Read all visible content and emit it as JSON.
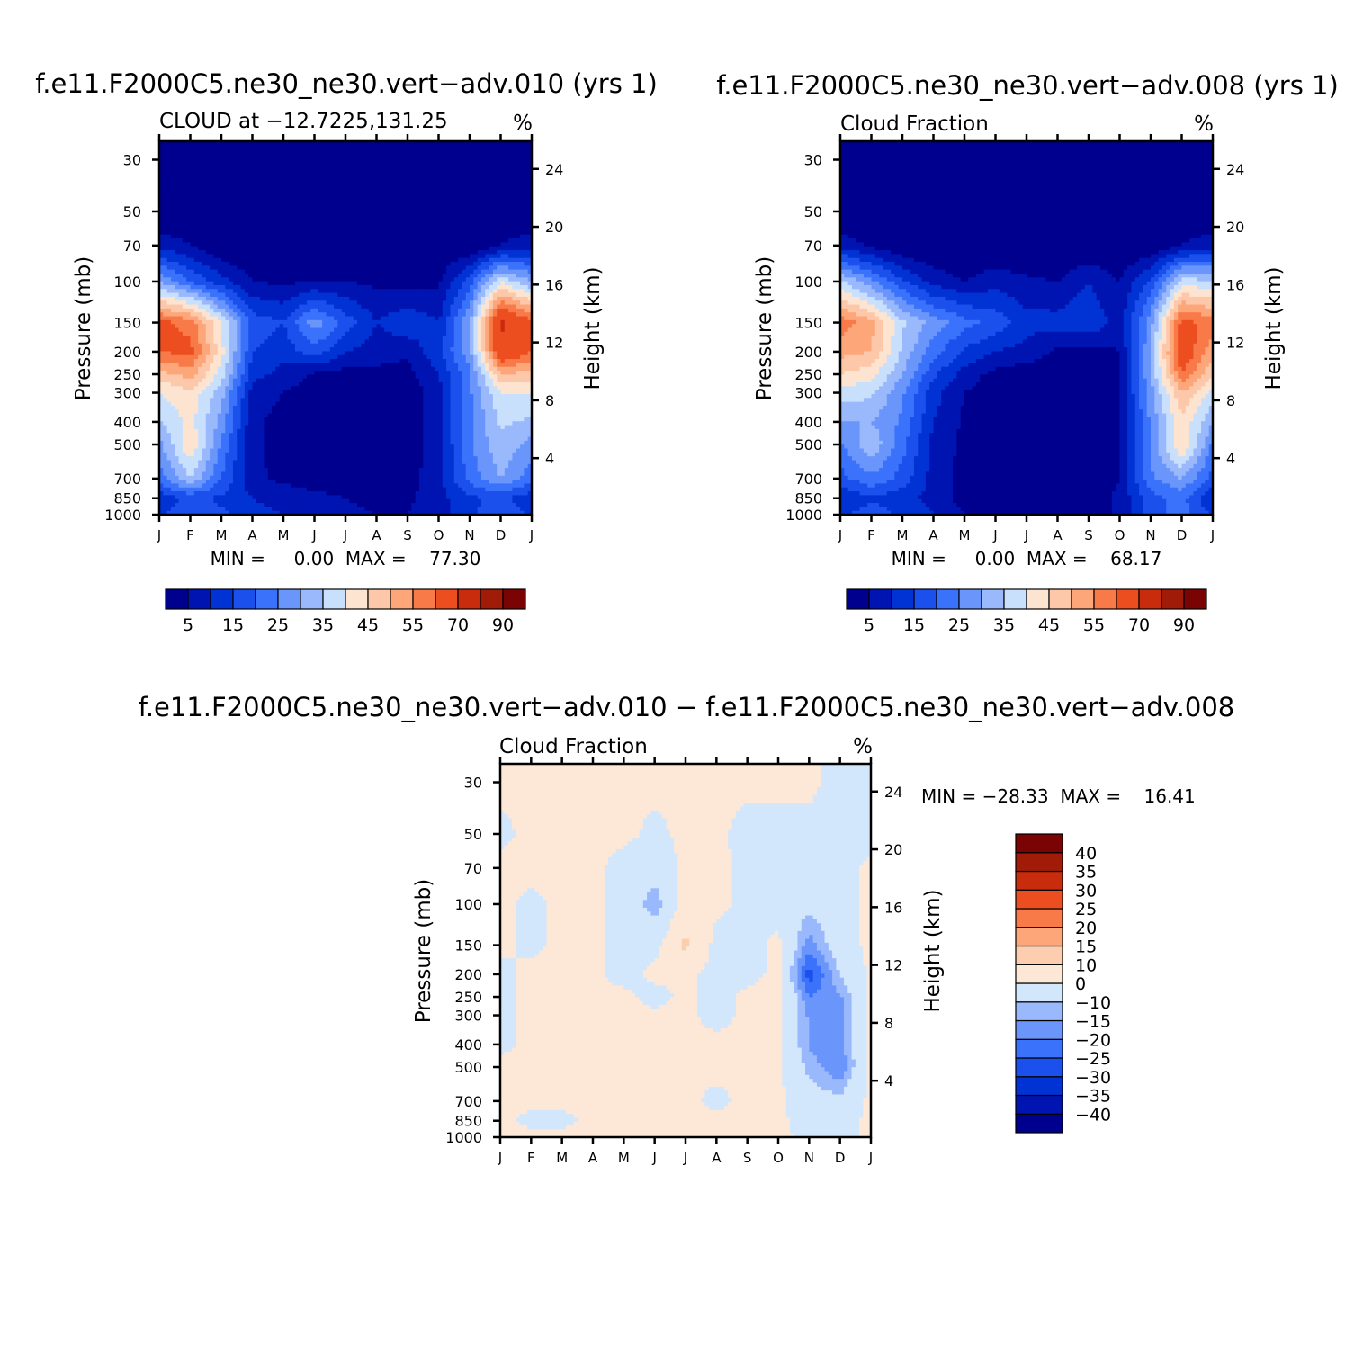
{
  "chart_data": [
    {
      "type": "heatmap",
      "run_title": "f.e11.F2000C5.ne30_ne30.vert−adv.010 (yrs 1)",
      "left_title": "CLOUD at −12.7225,131.25",
      "units": "%",
      "ylabel": "Pressure (mb)",
      "ylabel_right": "Height (km)",
      "x_ticks": [
        "J",
        "F",
        "M",
        "A",
        "M",
        "J",
        "J",
        "A",
        "S",
        "O",
        "N",
        "D",
        "J"
      ],
      "y_ticks": [
        "30",
        "50",
        "70",
        "100",
        "150",
        "200",
        "250",
        "300",
        "400",
        "500",
        "700",
        "850",
        "1000"
      ],
      "y_ticks_right": [
        "24",
        "20",
        "16",
        "12",
        "8",
        "4"
      ],
      "min": "0.00",
      "max": "77.30",
      "minmax_text": "MIN =     0.00  MAX =    77.30",
      "levels": [
        5,
        10,
        15,
        20,
        25,
        30,
        35,
        40,
        45,
        50,
        55,
        60,
        70,
        80,
        90
      ],
      "colorbar_labels": [
        "5",
        "15",
        "25",
        "35",
        "45",
        "55",
        "70",
        "90"
      ],
      "grid": [
        [
          0,
          0,
          0,
          0,
          0,
          0,
          0,
          0,
          0,
          0,
          0,
          0,
          0
        ],
        [
          0,
          0,
          0,
          0,
          0,
          0,
          0,
          0,
          0,
          0,
          0,
          0,
          0
        ],
        [
          8,
          5,
          0,
          0,
          0,
          0,
          0,
          0,
          0,
          0,
          0,
          5,
          8
        ],
        [
          30,
          20,
          12,
          5,
          4,
          5,
          5,
          4,
          3,
          4,
          18,
          40,
          30
        ],
        [
          62,
          58,
          40,
          18,
          15,
          28,
          18,
          10,
          14,
          10,
          30,
          72,
          62
        ],
        [
          60,
          62,
          42,
          15,
          12,
          18,
          10,
          8,
          6,
          14,
          28,
          68,
          60
        ],
        [
          48,
          52,
          38,
          12,
          8,
          4,
          3,
          3,
          3,
          10,
          24,
          50,
          48
        ],
        [
          40,
          44,
          32,
          8,
          5,
          3,
          2,
          2,
          2,
          8,
          24,
          40,
          40
        ],
        [
          34,
          42,
          28,
          6,
          3,
          2,
          2,
          2,
          2,
          8,
          24,
          36,
          34
        ],
        [
          28,
          45,
          24,
          6,
          3,
          2,
          2,
          2,
          2,
          8,
          24,
          34,
          28
        ],
        [
          22,
          35,
          20,
          6,
          4,
          3,
          3,
          3,
          3,
          8,
          22,
          30,
          22
        ],
        [
          12,
          16,
          14,
          10,
          8,
          6,
          5,
          4,
          4,
          8,
          14,
          16,
          12
        ],
        [
          14,
          20,
          16,
          12,
          10,
          8,
          6,
          5,
          5,
          8,
          14,
          18,
          14
        ]
      ]
    },
    {
      "type": "heatmap",
      "run_title": "f.e11.F2000C5.ne30_ne30.vert−adv.008 (yrs 1)",
      "left_title": "Cloud Fraction",
      "units": "%",
      "ylabel": "Pressure (mb)",
      "ylabel_right": "Height (km)",
      "x_ticks": [
        "J",
        "F",
        "M",
        "A",
        "M",
        "J",
        "J",
        "A",
        "S",
        "O",
        "N",
        "D",
        "J"
      ],
      "y_ticks": [
        "30",
        "50",
        "70",
        "100",
        "150",
        "200",
        "250",
        "300",
        "400",
        "500",
        "700",
        "850",
        "1000"
      ],
      "y_ticks_right": [
        "24",
        "20",
        "16",
        "12",
        "8",
        "4"
      ],
      "min": "0.00",
      "max": "68.17",
      "minmax_text": "MIN =     0.00  MAX =    68.17",
      "levels": [
        5,
        10,
        15,
        20,
        25,
        30,
        35,
        40,
        45,
        50,
        55,
        60,
        70,
        80,
        90
      ],
      "colorbar_labels": [
        "5",
        "15",
        "25",
        "35",
        "45",
        "55",
        "70",
        "90"
      ],
      "grid": [
        [
          0,
          0,
          0,
          0,
          0,
          0,
          0,
          0,
          0,
          0,
          0,
          0,
          0
        ],
        [
          0,
          0,
          0,
          0,
          0,
          0,
          0,
          0,
          0,
          0,
          0,
          0,
          0
        ],
        [
          8,
          4,
          0,
          0,
          0,
          0,
          0,
          0,
          0,
          0,
          0,
          5,
          8
        ],
        [
          36,
          26,
          16,
          8,
          5,
          8,
          6,
          5,
          10,
          5,
          16,
          38,
          36
        ],
        [
          58,
          52,
          36,
          28,
          22,
          18,
          12,
          12,
          14,
          8,
          28,
          62,
          58
        ],
        [
          52,
          50,
          34,
          22,
          14,
          10,
          8,
          4,
          3,
          5,
          30,
          66,
          52
        ],
        [
          45,
          42,
          30,
          16,
          8,
          3,
          2,
          2,
          2,
          5,
          30,
          60,
          45
        ],
        [
          38,
          36,
          26,
          12,
          5,
          2,
          2,
          2,
          2,
          5,
          28,
          50,
          38
        ],
        [
          30,
          30,
          24,
          10,
          4,
          2,
          2,
          2,
          2,
          5,
          26,
          44,
          30
        ],
        [
          24,
          34,
          22,
          8,
          4,
          2,
          2,
          2,
          2,
          5,
          26,
          46,
          24
        ],
        [
          18,
          24,
          18,
          8,
          3,
          2,
          2,
          2,
          2,
          5,
          24,
          30,
          18
        ],
        [
          10,
          14,
          12,
          8,
          3,
          2,
          2,
          2,
          2,
          6,
          18,
          22,
          10
        ],
        [
          14,
          18,
          14,
          10,
          5,
          2,
          2,
          2,
          2,
          6,
          18,
          22,
          14
        ]
      ]
    },
    {
      "type": "heatmap",
      "run_title": "f.e11.F2000C5.ne30_ne30.vert−adv.010 − f.e11.F2000C5.ne30_ne30.vert−adv.008",
      "left_title": "Cloud Fraction",
      "units": "%",
      "ylabel": "Pressure (mb)",
      "ylabel_right": "Height (km)",
      "x_ticks": [
        "J",
        "F",
        "M",
        "A",
        "M",
        "J",
        "J",
        "A",
        "S",
        "O",
        "N",
        "D",
        "J"
      ],
      "y_ticks": [
        "30",
        "50",
        "70",
        "100",
        "150",
        "200",
        "250",
        "300",
        "400",
        "500",
        "700",
        "850",
        "1000"
      ],
      "y_ticks_right": [
        "24",
        "20",
        "16",
        "12",
        "8",
        "4"
      ],
      "min": "−28.33",
      "max": "16.41",
      "minmax_text": "MIN = −28.33  MAX =    16.41",
      "levels": [
        -40,
        -35,
        -30,
        -25,
        -20,
        -15,
        -10,
        0,
        10,
        15,
        20,
        25,
        30,
        35,
        40
      ],
      "colorbar_labels": [
        "40",
        "35",
        "30",
        "25",
        "20",
        "15",
        "10",
        "0",
        "−10",
        "−15",
        "−20",
        "−25",
        "−30",
        "−35",
        "−40"
      ],
      "grid": [
        [
          2,
          2,
          2,
          2,
          2,
          2,
          2,
          2,
          2,
          2,
          2,
          -3,
          -3
        ],
        [
          -2,
          2,
          2,
          2,
          2,
          -2,
          2,
          2,
          -3,
          -3,
          -3,
          -3,
          -3
        ],
        [
          2,
          2,
          2,
          2,
          -3,
          -6,
          2,
          2,
          -2,
          -3,
          -3,
          -3,
          2
        ],
        [
          2,
          -2,
          2,
          2,
          -3,
          -14,
          4,
          2,
          -2,
          -3,
          -8,
          -3,
          2
        ],
        [
          2,
          -2,
          2,
          2,
          -3,
          -3,
          12,
          -3,
          -3,
          2,
          -18,
          -4,
          2
        ],
        [
          -2,
          2,
          6,
          2,
          -3,
          2,
          2,
          -3,
          -3,
          2,
          -28,
          -10,
          2
        ],
        [
          -2,
          2,
          8,
          2,
          2,
          -3,
          2,
          -3,
          2,
          4,
          -20,
          -16,
          2
        ],
        [
          -2,
          2,
          6,
          2,
          2,
          2,
          2,
          -3,
          2,
          2,
          -16,
          -18,
          2
        ],
        [
          -2,
          2,
          10,
          2,
          2,
          2,
          2,
          2,
          2,
          2,
          -16,
          -18,
          2
        ],
        [
          2,
          2,
          6,
          2,
          2,
          2,
          2,
          2,
          2,
          2,
          -12,
          -20,
          2
        ],
        [
          2,
          2,
          2,
          2,
          2,
          2,
          2,
          -2,
          2,
          2,
          -6,
          -8,
          2
        ],
        [
          2,
          -2,
          -2,
          2,
          2,
          2,
          2,
          2,
          2,
          2,
          -4,
          -4,
          2
        ],
        [
          2,
          2,
          2,
          2,
          2,
          2,
          2,
          2,
          2,
          2,
          -2,
          -4,
          2
        ]
      ]
    }
  ],
  "colors": {
    "abs_palette": [
      "#00008e",
      "#0014b2",
      "#0032d4",
      "#1c50ec",
      "#3a72fc",
      "#6a96fc",
      "#9ab8fc",
      "#c8e0fc",
      "#fde4d0",
      "#fdc8aa",
      "#fca67a",
      "#f87a48",
      "#ec4e20",
      "#c82c0c",
      "#a01c08",
      "#7a0404"
    ],
    "diff_palette": [
      "#00008e",
      "#0014b2",
      "#0032d4",
      "#1c50ec",
      "#3a72fc",
      "#6a96fc",
      "#9ab8fc",
      "#d2e6fc",
      "#fde8d8",
      "#fdcdb0",
      "#fca67a",
      "#f87a48",
      "#ec4e20",
      "#c82c0c",
      "#a01c08",
      "#7a0404"
    ]
  }
}
